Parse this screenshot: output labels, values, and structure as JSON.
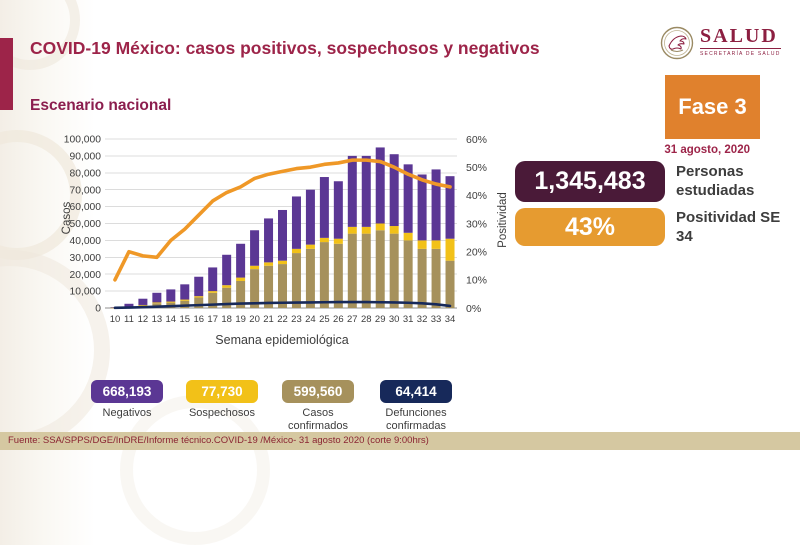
{
  "header": {
    "title": "COVID-19 México: casos positivos, sospechosos y negativos",
    "subtitle": "Escenario nacional",
    "logo": {
      "name": "SALUD",
      "sub": "SECRETARÍA DE SALUD"
    },
    "phase_label": "Fase 3",
    "date": "31 agosto, 2020"
  },
  "stats": [
    {
      "value": "1,345,483",
      "label": "Personas estudiadas",
      "color": "#4a1a38"
    },
    {
      "value": "43%",
      "label": "Positividad SE 34",
      "color": "#e69b30"
    }
  ],
  "chart_data": {
    "type": "bar",
    "subtype": "stacked-bars-with-lines",
    "categories": [
      10,
      11,
      12,
      13,
      14,
      15,
      16,
      17,
      18,
      19,
      20,
      21,
      22,
      23,
      24,
      25,
      26,
      27,
      28,
      29,
      30,
      31,
      32,
      33,
      34
    ],
    "series": [
      {
        "name": "Casos confirmados",
        "type": "bar",
        "color": "#a6915c",
        "values": [
          150,
          600,
          1500,
          2800,
          3200,
          4300,
          6200,
          9000,
          12000,
          16000,
          23000,
          25000,
          26000,
          32500,
          35000,
          39000,
          38000,
          44000,
          44000,
          46000,
          44000,
          40000,
          35000,
          35000,
          28000
        ]
      },
      {
        "name": "Sospechosos",
        "type": "bar",
        "color": "#f2c118",
        "values": [
          50,
          200,
          300,
          500,
          600,
          700,
          800,
          1000,
          1500,
          2000,
          2000,
          2000,
          2000,
          2500,
          2500,
          2500,
          3000,
          4000,
          4000,
          4000,
          4500,
          4500,
          5000,
          5000,
          13000
        ]
      },
      {
        "name": "Negativos",
        "type": "bar",
        "color": "#5b3794",
        "values": [
          250,
          1700,
          3700,
          5700,
          7200,
          9000,
          11500,
          14000,
          18000,
          20000,
          21000,
          26000,
          30000,
          31000,
          32500,
          36000,
          34000,
          42000,
          42000,
          45000,
          42500,
          40500,
          39000,
          42000,
          37000
        ]
      },
      {
        "name": "Defunciones confirmadas",
        "type": "line",
        "axis": "left",
        "color": "#17295a",
        "width": 2.6,
        "values": [
          100,
          250,
          500,
          800,
          1100,
          1400,
          1700,
          2000,
          2300,
          2600,
          2800,
          3000,
          3100,
          3200,
          3300,
          3400,
          3500,
          3500,
          3500,
          3400,
          3300,
          3100,
          2800,
          2200,
          1200
        ]
      },
      {
        "name": "Positividad",
        "type": "line",
        "axis": "right",
        "color": "#ef9827",
        "width": 3.6,
        "values": [
          10,
          20,
          18.5,
          18,
          24,
          28,
          33,
          38,
          41,
          43,
          46,
          47.5,
          48.5,
          49.5,
          50,
          51,
          51.5,
          52.5,
          52.5,
          52,
          50,
          47.5,
          45.5,
          44,
          43
        ]
      }
    ],
    "title": "Escenario nacional",
    "xlabel": "Semana epidemiológica",
    "ylabel_left": "Casos",
    "ylabel_right": "Positividad",
    "ylim_left": [
      0,
      100000
    ],
    "ylim_right": [
      0,
      60
    ],
    "yticks_left": [
      "0",
      "10,000",
      "20,000",
      "30,000",
      "40,000",
      "50,000",
      "60,000",
      "70,000",
      "80,000",
      "90,000",
      "100,000"
    ],
    "yticks_right": [
      "0%",
      "10%",
      "20%",
      "30%",
      "40%",
      "50%",
      "60%"
    ],
    "grid": "horizontal",
    "legend_position": "bottom-badges"
  },
  "legend_badges": [
    {
      "value": "668,193",
      "label": "Negativos",
      "color": "#5b3794"
    },
    {
      "value": "77,730",
      "label": "Sospechosos",
      "color": "#f2c118"
    },
    {
      "value": "599,560",
      "label": "Casos confirmados",
      "color": "#a6915c"
    },
    {
      "value": "64,414",
      "label": "Defunciones confirmadas",
      "color": "#17295a"
    }
  ],
  "footer": {
    "source": "Fuente: SSA/SPPS/DGE/InDRE/Informe técnico.COVID-19 /México- 31 agosto 2020 (corte 9:00hrs)"
  }
}
